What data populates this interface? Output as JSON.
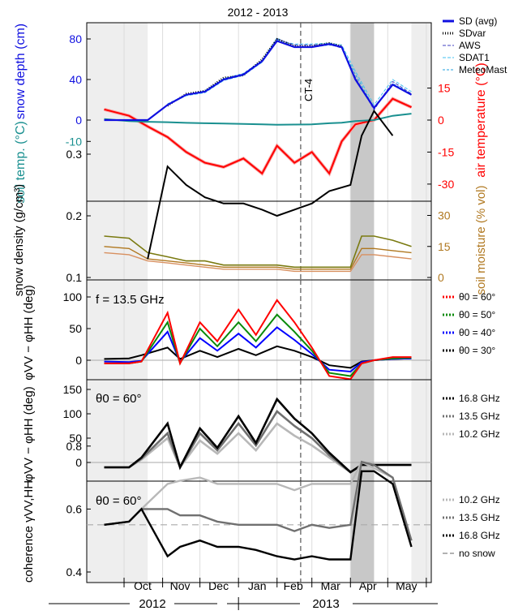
{
  "title": "2012 - 2013",
  "colors": {
    "sd": "#1010e0",
    "air": "#ff0000",
    "air_light": "#f8a8a8",
    "soil": "#1a9090",
    "moist_dark": "#7a7a10",
    "moist_mid": "#b07820",
    "moist_light": "#d89060",
    "theta60": "#ff0000",
    "theta50": "#0a8a0a",
    "theta40": "#0000ff",
    "theta30": "#000000",
    "ghz168": "#000000",
    "ghz135": "#707070",
    "ghz102": "#b8b8b8",
    "grey_band": "#c8c8c8",
    "light_band": "#eeeeee"
  },
  "axis_months": [
    "Oct",
    "Nov",
    "Dec",
    "Jan",
    "Feb",
    "Mar",
    "Apr",
    "May"
  ],
  "years": [
    "2012",
    "2013"
  ],
  "ct_label": "CT-4",
  "chart_data": [
    {
      "type": "line",
      "panel": "snow depth / temperature",
      "ylabel_left": "snow depth (cm)",
      "ylabel_left_2": "soil temp. (°C)",
      "ylabel_right": "air temperature (°C)",
      "yticks_left": [
        "80",
        "40",
        "0",
        "-10"
      ],
      "yticks_right": [
        "15",
        "0",
        "-15",
        "-30"
      ],
      "x": [
        "2012-09-15",
        "2012-10-05",
        "2012-10-20",
        "2012-11-05",
        "2012-11-20",
        "2012-12-05",
        "2012-12-20",
        "2013-01-05",
        "2013-01-20",
        "2013-02-01",
        "2013-02-15",
        "2013-03-01",
        "2013-03-15",
        "2013-03-25",
        "2013-04-05",
        "2013-04-20",
        "2013-05-05",
        "2013-05-20"
      ],
      "series": [
        {
          "name": "SD (avg)",
          "unit": "cm",
          "values": [
            0,
            0,
            0,
            15,
            25,
            28,
            40,
            45,
            58,
            78,
            72,
            72,
            75,
            72,
            40,
            12,
            35,
            25
          ]
        },
        {
          "name": "SDvar",
          "unit": "cm",
          "values": [
            null,
            null,
            null,
            14,
            26,
            29,
            42,
            44,
            60,
            80,
            73,
            73,
            76,
            73,
            null,
            null,
            null,
            null
          ]
        },
        {
          "name": "AWS",
          "unit": "cm",
          "values": [
            null,
            null,
            null,
            15,
            25,
            28,
            40,
            45,
            58,
            80,
            74,
            74,
            75,
            71,
            42,
            10,
            38,
            26
          ]
        },
        {
          "name": "SDAT1",
          "unit": "cm",
          "values": [
            null,
            null,
            null,
            15,
            24,
            27,
            39,
            44,
            57,
            79,
            75,
            75,
            76,
            74,
            48,
            15,
            40,
            28
          ]
        },
        {
          "name": "MeteoMast",
          "unit": "cm",
          "values": [
            null,
            null,
            null,
            16,
            25,
            29,
            41,
            46,
            59,
            81,
            72,
            72,
            74,
            72,
            45,
            12,
            36,
            26
          ]
        },
        {
          "name": "soil temp.",
          "unit": "°C",
          "values": [
            0.5,
            -0.5,
            -0.8,
            -1.0,
            -1.3,
            -1.5,
            -1.6,
            -1.8,
            -2.0,
            -2.2,
            -2.1,
            -2.0,
            -1.5,
            -1.2,
            -0.5,
            0,
            2,
            3
          ]
        },
        {
          "name": "air temperature",
          "unit": "°C",
          "values": [
            5,
            2,
            -3,
            -8,
            -15,
            -20,
            -22,
            -18,
            -25,
            -12,
            -20,
            -15,
            -25,
            -10,
            -2,
            0,
            10,
            6
          ]
        }
      ]
    },
    {
      "type": "line",
      "panel": "snow density / soil moisture",
      "ylabel_left": "snow density (g/cm³)",
      "ylabel_right": "soil moisture (% vol)",
      "yticks_left": [
        "0.3",
        "0.2",
        "0.1"
      ],
      "yticks_right": [
        "30",
        "15",
        "0"
      ],
      "x": [
        "2012-09-15",
        "2012-10-05",
        "2012-10-20",
        "2012-11-05",
        "2012-11-20",
        "2012-12-05",
        "2012-12-20",
        "2013-01-05",
        "2013-01-20",
        "2013-02-01",
        "2013-02-15",
        "2013-03-01",
        "2013-03-15",
        "2013-04-01",
        "2013-04-10",
        "2013-04-20",
        "2013-05-05",
        "2013-05-20"
      ],
      "series": [
        {
          "name": "snow density",
          "unit": "g/cm³",
          "values": [
            null,
            null,
            0.13,
            0.28,
            0.25,
            0.23,
            0.22,
            0.22,
            0.21,
            0.2,
            0.21,
            0.22,
            0.24,
            0.25,
            0.33,
            0.37,
            0.33,
            null
          ]
        },
        {
          "name": "soil moisture (dark)",
          "unit": "% vol",
          "values": [
            20,
            19,
            12,
            10,
            8,
            8,
            6,
            6,
            6,
            6,
            5,
            5,
            5,
            5,
            20,
            20,
            18,
            15
          ]
        },
        {
          "name": "soil moisture (mid)",
          "unit": "% vol",
          "values": [
            15,
            14,
            9,
            8,
            7,
            6,
            5,
            5,
            5,
            5,
            4,
            4,
            4,
            4,
            14,
            14,
            13,
            12
          ]
        },
        {
          "name": "soil moisture (light)",
          "unit": "% vol",
          "values": [
            12,
            11,
            8,
            7,
            6,
            5,
            4,
            4,
            4,
            4,
            3,
            3,
            3,
            3,
            11,
            11,
            10,
            9
          ]
        }
      ]
    },
    {
      "type": "line",
      "panel": "phase difference vs incidence angle",
      "annotation": "f = 13.5 GHz",
      "ylabel_left": "φVV − φHH (deg)",
      "yticks_left": [
        "100",
        "50",
        "0"
      ],
      "x": [
        "2012-09-15",
        "2012-10-05",
        "2012-10-15",
        "2012-11-05",
        "2012-11-15",
        "2012-12-01",
        "2012-12-15",
        "2013-01-01",
        "2013-01-15",
        "2013-02-01",
        "2013-02-15",
        "2013-03-01",
        "2013-03-15",
        "2013-04-01",
        "2013-04-10",
        "2013-04-20",
        "2013-05-05",
        "2013-05-20"
      ],
      "series": [
        {
          "name": "θ0 = 60°",
          "values": [
            -5,
            -5,
            -2,
            75,
            -5,
            60,
            30,
            80,
            40,
            95,
            60,
            20,
            -25,
            -30,
            -5,
            0,
            5,
            5
          ]
        },
        {
          "name": "θ0 = 50°",
          "values": [
            -5,
            -5,
            -2,
            60,
            -5,
            50,
            22,
            60,
            30,
            72,
            45,
            15,
            -20,
            -25,
            -5,
            0,
            3,
            4
          ]
        },
        {
          "name": "θ0 = 40°",
          "values": [
            -2,
            -3,
            -1,
            45,
            -3,
            35,
            15,
            42,
            20,
            52,
            32,
            10,
            -15,
            -18,
            -3,
            0,
            2,
            3
          ]
        },
        {
          "name": "θ0 = 30°",
          "values": [
            2,
            3,
            8,
            20,
            2,
            15,
            5,
            18,
            8,
            22,
            15,
            5,
            -8,
            -12,
            -2,
            0,
            2,
            3
          ]
        }
      ]
    },
    {
      "type": "line",
      "panel": "phase difference vs frequency",
      "annotation": "θ0 = 60°",
      "ylabel_left": "φVV − φHH (deg)",
      "yticks_left": [
        "150",
        "100",
        "50",
        "0"
      ],
      "x": [
        "2012-09-15",
        "2012-10-05",
        "2012-10-15",
        "2012-11-05",
        "2012-11-15",
        "2012-12-01",
        "2012-12-15",
        "2013-01-01",
        "2013-01-15",
        "2013-02-01",
        "2013-02-15",
        "2013-03-01",
        "2013-03-15",
        "2013-04-01",
        "2013-04-10",
        "2013-04-20",
        "2013-05-05",
        "2013-05-20"
      ],
      "series": [
        {
          "name": "16.8 GHz",
          "values": [
            -10,
            -10,
            10,
            80,
            -10,
            70,
            30,
            95,
            40,
            130,
            90,
            60,
            20,
            -20,
            -5,
            -5,
            -5,
            -5
          ]
        },
        {
          "name": "13.5 GHz",
          "values": [
            -10,
            -10,
            8,
            60,
            -10,
            60,
            25,
            80,
            35,
            105,
            75,
            50,
            15,
            -20,
            -5,
            -5,
            -5,
            -5
          ]
        },
        {
          "name": "10.2 GHz",
          "values": [
            -10,
            -10,
            6,
            50,
            -10,
            45,
            18,
            60,
            25,
            80,
            55,
            35,
            10,
            -20,
            -5,
            -5,
            -5,
            -5
          ]
        }
      ]
    },
    {
      "type": "line",
      "panel": "coherence",
      "annotation": "θ0 = 60°",
      "ylabel_left": "coherence γVV,HH",
      "yticks_left": [
        "0.8",
        "0.6",
        "0.4"
      ],
      "no_snow_level": 0.55,
      "x": [
        "2012-09-15",
        "2012-10-05",
        "2012-10-15",
        "2012-11-05",
        "2012-11-15",
        "2012-12-01",
        "2012-12-15",
        "2013-01-01",
        "2013-01-15",
        "2013-02-01",
        "2013-02-15",
        "2013-03-01",
        "2013-03-15",
        "2013-04-01",
        "2013-04-10",
        "2013-04-20",
        "2013-05-05",
        "2013-05-20"
      ],
      "series": [
        {
          "name": "10.2 GHz",
          "values": [
            0.55,
            0.56,
            0.6,
            0.68,
            0.69,
            0.7,
            0.68,
            0.68,
            0.68,
            0.68,
            0.66,
            0.68,
            0.68,
            0.68,
            0.75,
            0.73,
            0.7,
            0.5
          ]
        },
        {
          "name": "13.5 GHz",
          "values": [
            0.55,
            0.56,
            0.6,
            0.6,
            0.58,
            0.58,
            0.56,
            0.55,
            0.55,
            0.55,
            0.53,
            0.55,
            0.54,
            0.55,
            0.75,
            0.74,
            0.7,
            0.5
          ]
        },
        {
          "name": "16.8 GHz",
          "values": [
            0.55,
            0.56,
            0.6,
            0.45,
            0.48,
            0.5,
            0.48,
            0.48,
            0.47,
            0.45,
            0.44,
            0.45,
            0.44,
            0.44,
            0.72,
            0.72,
            0.68,
            0.48
          ]
        },
        {
          "name": "no snow",
          "values": [
            0.55,
            0.55,
            0.55,
            0.55,
            0.55,
            0.55,
            0.55,
            0.55,
            0.55,
            0.55,
            0.55,
            0.55,
            0.55,
            0.55,
            0.55,
            0.55,
            0.55,
            0.55
          ]
        }
      ]
    }
  ],
  "legends": {
    "panel1": [
      "SD (avg)",
      "SDvar",
      "AWS",
      "SDAT1",
      "MeteoMast"
    ],
    "panel3": [
      "θ0 = 60°",
      "θ0 = 50°",
      "θ0 = 40°",
      "θ0 = 30°"
    ],
    "panel4": [
      "16.8 GHz",
      "13.5 GHz",
      "10.2 GHz"
    ],
    "panel5": [
      "10.2 GHz",
      "13.5 GHz",
      "16.8 GHz",
      "no snow"
    ]
  }
}
